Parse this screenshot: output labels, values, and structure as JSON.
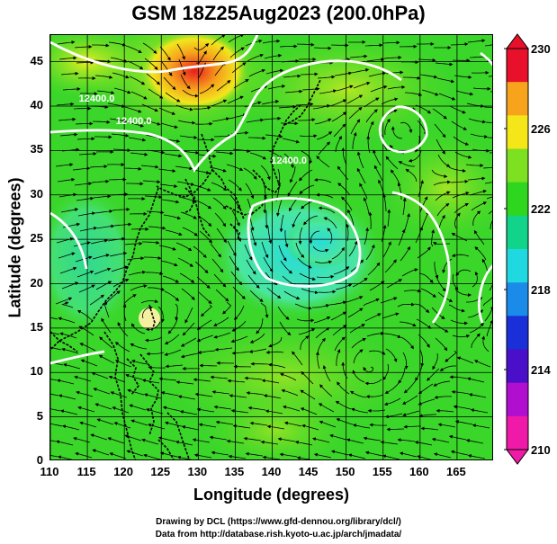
{
  "title": "GSM 18Z25Aug2023 (200.0hPa)",
  "x_axis": {
    "label": "Longitude (degrees)",
    "ticks": [
      "110",
      "115",
      "120",
      "125",
      "130",
      "135",
      "140",
      "145",
      "150",
      "155",
      "160",
      "165"
    ],
    "range": [
      110,
      170
    ]
  },
  "y_axis": {
    "label": "Latitude (degrees)",
    "ticks": [
      "0",
      "5",
      "10",
      "15",
      "20",
      "25",
      "30",
      "35",
      "40",
      "45"
    ],
    "range": [
      0,
      48
    ]
  },
  "colorbar": {
    "ticks": [
      "230",
      "226",
      "222",
      "218",
      "214",
      "210"
    ],
    "colors": [
      "#e8102a",
      "#f7a31c",
      "#f5e61a",
      "#7de021",
      "#2fd61e",
      "#11d48a",
      "#20d8e0",
      "#1a8be8",
      "#1a2fd8",
      "#4a0fc8",
      "#b00fd0",
      "#f01aa8"
    ]
  },
  "contours": [
    {
      "label": "12400.0",
      "longitude": 117.5,
      "latitude": 40.5
    },
    {
      "label": "12400.0",
      "longitude": 122.5,
      "latitude": 38.0
    },
    {
      "label": "12400.0",
      "longitude": 143.5,
      "latitude": 33.5
    }
  ],
  "credits": {
    "line1": "Drawing by DCL (https://www.gfd-dennou.org/library/dcl/)",
    "line2": "Data from http://database.rish.kyoto-u.ac.jp/arch/jmadata/"
  }
}
